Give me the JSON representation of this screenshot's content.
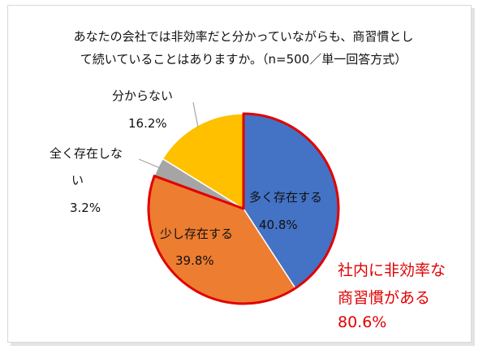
{
  "chart_data": {
    "type": "pie",
    "title_lines": [
      "あなたの会社では非効率だと分かっていながらも、商習慣とし",
      "て続いていることはありますか。（n=500／単一回答方式）"
    ],
    "start_angle_deg": 0,
    "direction": "clockwise",
    "slices": [
      {
        "name": "多く存在する",
        "value": 40.8,
        "value_label": "40.8%",
        "color": "#4472c4"
      },
      {
        "name": "少し存在する",
        "value": 39.8,
        "value_label": "39.8%",
        "color": "#ed7d31"
      },
      {
        "name_lines": [
          "全く存在しな",
          "い"
        ],
        "value": 3.2,
        "value_label": "3.2%",
        "color": "#a5a5a5"
      },
      {
        "name": "分からない",
        "value": 16.2,
        "value_label": "16.2%",
        "color": "#ffc000"
      }
    ],
    "highlight": {
      "slices": [
        0,
        1
      ],
      "stroke_color": "#e10000",
      "annotation_lines": [
        "社内に非効率な",
        "商習慣がある",
        "80.6%"
      ],
      "annotation_color": "#e10000"
    }
  }
}
